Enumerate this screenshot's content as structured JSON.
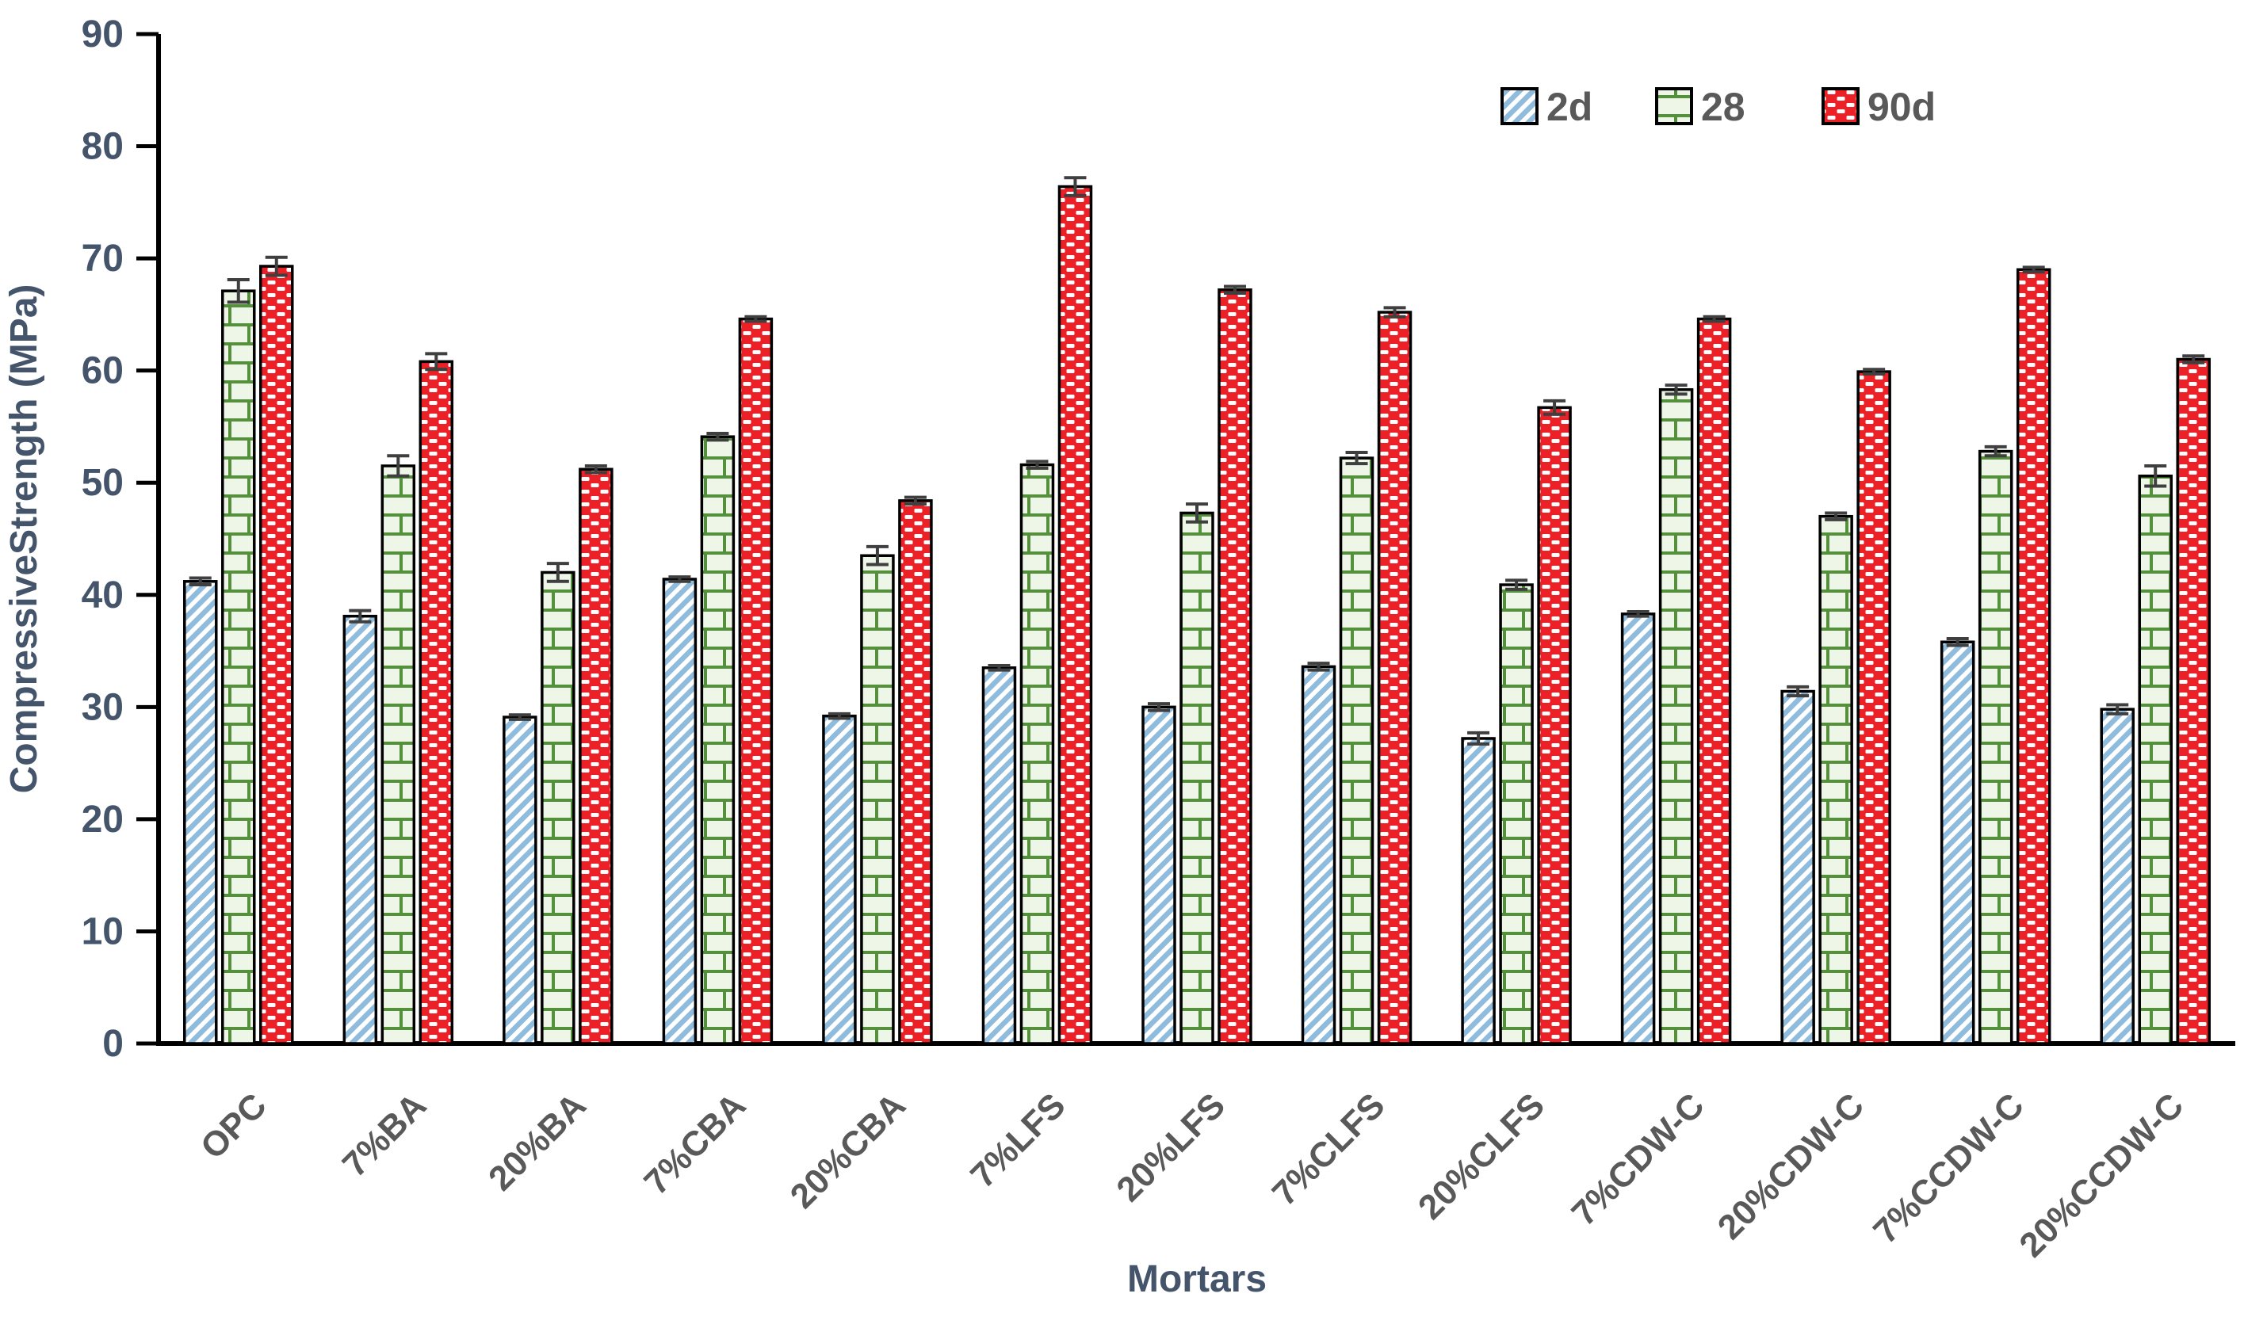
{
  "page": {
    "background": "#ffffff"
  },
  "chart_data": {
    "type": "bar",
    "title": "",
    "xlabel": "Mortars",
    "ylabel": "CompressiveStrength (MPa)",
    "ylim": [
      0,
      90
    ],
    "ytick_step": 10,
    "ytick_labels": [
      "0",
      "10",
      "20",
      "30",
      "40",
      "50",
      "60",
      "70",
      "80",
      "90"
    ],
    "grid": false,
    "legend_position": "top-right",
    "categories": [
      "OPC",
      "7%BA",
      "20%BA",
      "7%CBA",
      "20%CBA",
      "7%LFS",
      "20%LFS",
      "7%CLFS",
      "20%CLFS",
      "7%CDW-C",
      "20%CDW-C",
      "7%CCDW-C",
      "20%CCDW-C"
    ],
    "series": [
      {
        "name": "2d",
        "pattern": "diagonal-stripes",
        "fill_color": "#8fbcdc",
        "values": [
          41.2,
          38.1,
          29.1,
          41.4,
          29.2,
          33.5,
          30.0,
          33.6,
          27.2,
          38.3,
          31.4,
          35.8,
          29.8
        ],
        "errors": [
          0.3,
          0.5,
          0.2,
          0.2,
          0.2,
          0.2,
          0.3,
          0.3,
          0.5,
          0.2,
          0.4,
          0.3,
          0.4
        ]
      },
      {
        "name": "28",
        "pattern": "brick",
        "fill_color": "#55913c",
        "values": [
          67.1,
          51.5,
          42.0,
          54.1,
          43.5,
          51.6,
          47.3,
          52.2,
          40.9,
          58.3,
          47.0,
          52.8,
          50.6
        ],
        "errors": [
          1.0,
          0.9,
          0.8,
          0.3,
          0.8,
          0.3,
          0.8,
          0.5,
          0.4,
          0.4,
          0.3,
          0.4,
          0.9
        ]
      },
      {
        "name": "90d",
        "pattern": "red-dashes",
        "fill_color": "#ec2027",
        "values": [
          69.3,
          60.8,
          51.2,
          64.6,
          48.4,
          76.4,
          67.2,
          65.2,
          56.7,
          64.6,
          59.9,
          69.0,
          61.0
        ],
        "errors": [
          0.8,
          0.7,
          0.3,
          0.2,
          0.3,
          0.8,
          0.3,
          0.4,
          0.6,
          0.2,
          0.2,
          0.2,
          0.3
        ]
      }
    ],
    "colors": {
      "axis": "#000000",
      "bar_outline": "#000000",
      "tick_label": "#44546a",
      "axis_title": "#44546a",
      "category_label": "#595959",
      "legend_label": "#595959",
      "error_bar": "#3f3f3f",
      "stripe_blue": "#8fbcdc",
      "brick_green_line": "#55913c",
      "brick_green_fill": "#eef6e8",
      "dash_red": "#ec2027"
    }
  }
}
